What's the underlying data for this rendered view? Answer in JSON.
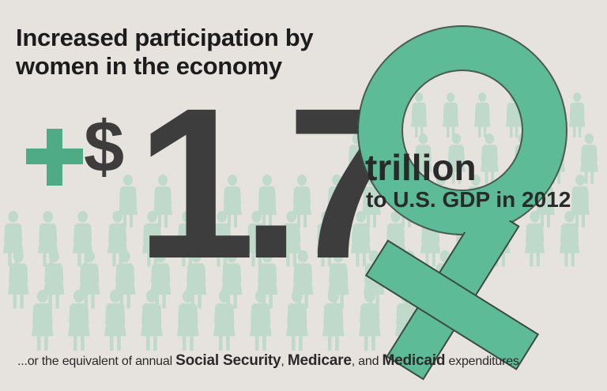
{
  "headline": {
    "line1": "Increased participation by",
    "line2": "women in the economy"
  },
  "stat": {
    "prefix": "+",
    "currency": "$",
    "value": "1.7",
    "unit": "trillion",
    "context": "to U.S. GDP in 2012"
  },
  "footnote": {
    "lead": "...or the equivalent of annual ",
    "item1": "Social Security",
    "sep1": ", ",
    "item2": "Medicare",
    "sep2": ", and ",
    "item3": "Medicaid",
    "tail": " expenditures"
  },
  "icons": [
    "venus-symbol-icon",
    "woman-figure-icon"
  ],
  "colors": {
    "background": "#e6e3df",
    "accent_green": "#4fab85",
    "crowd_green": "#bfd9ca",
    "text_dark": "#3d3d3d"
  }
}
